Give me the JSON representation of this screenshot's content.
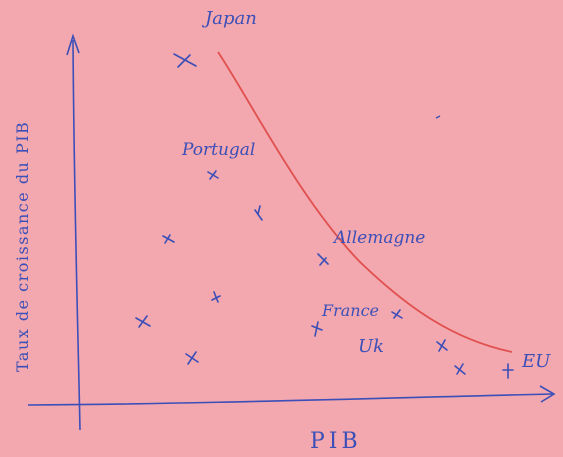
{
  "diagram": {
    "x_axis_label": "PIB",
    "y_axis_label": "Taux de croissance du PIB",
    "labels": {
      "japan": "Japan",
      "portugal": "Portugal",
      "allemagne": "Allemagne",
      "france": "France",
      "uk": "Uk",
      "eu": "EU"
    }
  },
  "colors": {
    "paper": "#f3a7ae",
    "ink": "#3b4fb8",
    "curve": "#e0504f"
  }
}
